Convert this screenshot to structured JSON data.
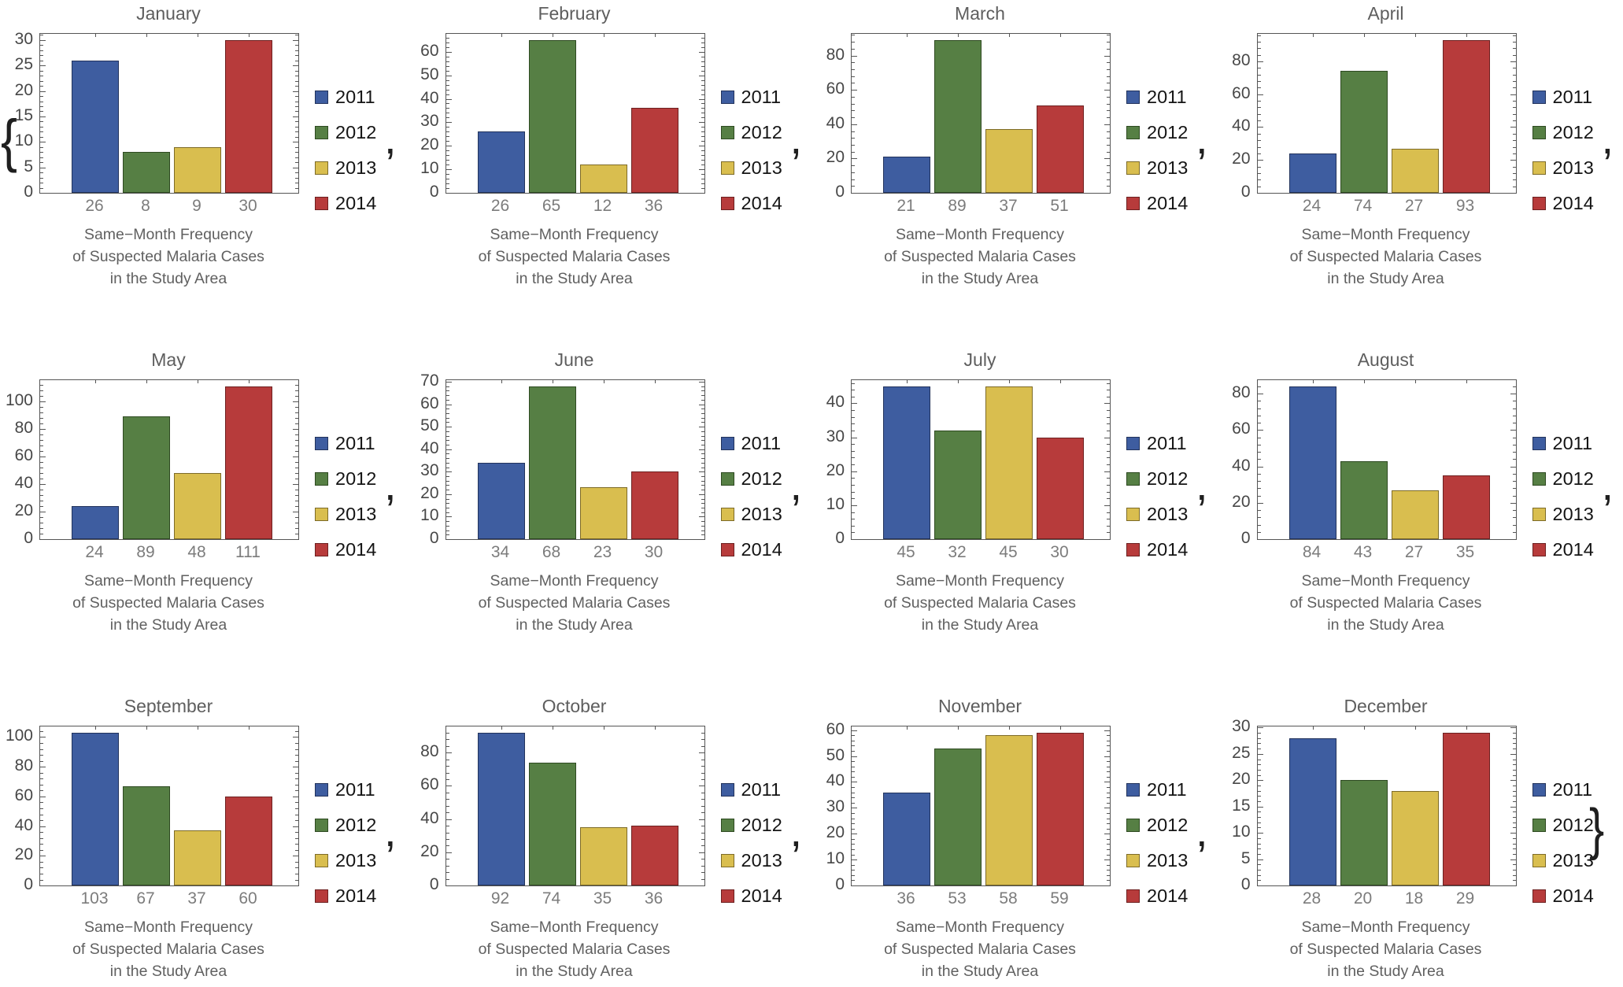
{
  "figure": {
    "list_delimiters": {
      "open": "{",
      "separator": ",",
      "close": "}"
    },
    "caption_lines": [
      "Same−Month Frequency",
      "of Suspected Malaria Cases",
      "in the Study Area"
    ],
    "legend": {
      "position": "right",
      "entries": [
        "2011",
        "2012",
        "2013",
        "2014"
      ]
    },
    "colors": {
      "series_fills": [
        "#3e5da0",
        "#567f44",
        "#d9be4f",
        "#b73b3b"
      ],
      "series_edges": [
        "#22335c",
        "#2e4a21",
        "#7d6b28",
        "#6d2020"
      ],
      "frame": "#555555",
      "title_text": "#5e5e5e",
      "tick_label_text": "#474747",
      "bar_value_text": "#7c7c7c",
      "caption_text": "#606060",
      "legend_text": "#141414",
      "delimiter_text": "#1f1f1f",
      "background": "#ffffff"
    }
  },
  "chart_data": [
    {
      "type": "bar",
      "title": "January",
      "categories": [
        "2011",
        "2012",
        "2013",
        "2014"
      ],
      "values": [
        26,
        8,
        9,
        30
      ],
      "yticks": [
        0,
        5,
        10,
        15,
        20,
        25,
        30
      ],
      "ylim": [
        0,
        31.2
      ],
      "xlabel": "Same−Month Frequency of Suspected Malaria Cases in the Study Area",
      "legend_position": "right",
      "separator_after": ","
    },
    {
      "type": "bar",
      "title": "February",
      "categories": [
        "2011",
        "2012",
        "2013",
        "2014"
      ],
      "values": [
        26,
        65,
        12,
        36
      ],
      "yticks": [
        0,
        10,
        20,
        30,
        40,
        50,
        60
      ],
      "ylim": [
        0,
        67.6
      ],
      "xlabel": "Same−Month Frequency of Suspected Malaria Cases in the Study Area",
      "legend_position": "right",
      "separator_after": ","
    },
    {
      "type": "bar",
      "title": "March",
      "categories": [
        "2011",
        "2012",
        "2013",
        "2014"
      ],
      "values": [
        21,
        89,
        37,
        51
      ],
      "yticks": [
        0,
        20,
        40,
        60,
        80
      ],
      "ylim": [
        0,
        92.6
      ],
      "xlabel": "Same−Month Frequency of Suspected Malaria Cases in the Study Area",
      "legend_position": "right",
      "separator_after": ","
    },
    {
      "type": "bar",
      "title": "April",
      "categories": [
        "2011",
        "2012",
        "2013",
        "2014"
      ],
      "values": [
        24,
        74,
        27,
        93
      ],
      "yticks": [
        0,
        20,
        40,
        60,
        80
      ],
      "ylim": [
        0,
        96.7
      ],
      "xlabel": "Same−Month Frequency of Suspected Malaria Cases in the Study Area",
      "legend_position": "right",
      "separator_after": ","
    },
    {
      "type": "bar",
      "title": "May",
      "categories": [
        "2011",
        "2012",
        "2013",
        "2014"
      ],
      "values": [
        24,
        89,
        48,
        111
      ],
      "yticks": [
        0,
        20,
        40,
        60,
        80,
        100
      ],
      "ylim": [
        0,
        115.4
      ],
      "xlabel": "Same−Month Frequency of Suspected Malaria Cases in the Study Area",
      "legend_position": "right",
      "separator_after": ","
    },
    {
      "type": "bar",
      "title": "June",
      "categories": [
        "2011",
        "2012",
        "2013",
        "2014"
      ],
      "values": [
        34,
        68,
        23,
        30
      ],
      "yticks": [
        0,
        10,
        20,
        30,
        40,
        50,
        60,
        70
      ],
      "ylim": [
        0,
        70.7
      ],
      "xlabel": "Same−Month Frequency of Suspected Malaria Cases in the Study Area",
      "legend_position": "right",
      "separator_after": ","
    },
    {
      "type": "bar",
      "title": "July",
      "categories": [
        "2011",
        "2012",
        "2013",
        "2014"
      ],
      "values": [
        45,
        32,
        45,
        30
      ],
      "yticks": [
        0,
        10,
        20,
        30,
        40
      ],
      "ylim": [
        0,
        46.8
      ],
      "xlabel": "Same−Month Frequency of Suspected Malaria Cases in the Study Area",
      "legend_position": "right",
      "separator_after": ","
    },
    {
      "type": "bar",
      "title": "August",
      "categories": [
        "2011",
        "2012",
        "2013",
        "2014"
      ],
      "values": [
        84,
        43,
        27,
        35
      ],
      "yticks": [
        0,
        20,
        40,
        60,
        80
      ],
      "ylim": [
        0,
        87.4
      ],
      "xlabel": "Same−Month Frequency of Suspected Malaria Cases in the Study Area",
      "legend_position": "right",
      "separator_after": ","
    },
    {
      "type": "bar",
      "title": "September",
      "categories": [
        "2011",
        "2012",
        "2013",
        "2014"
      ],
      "values": [
        103,
        67,
        37,
        60
      ],
      "yticks": [
        0,
        20,
        40,
        60,
        80,
        100
      ],
      "ylim": [
        0,
        107.1
      ],
      "xlabel": "Same−Month Frequency of Suspected Malaria Cases in the Study Area",
      "legend_position": "right",
      "separator_after": ","
    },
    {
      "type": "bar",
      "title": "October",
      "categories": [
        "2011",
        "2012",
        "2013",
        "2014"
      ],
      "values": [
        92,
        74,
        35,
        36
      ],
      "yticks": [
        0,
        20,
        40,
        60,
        80
      ],
      "ylim": [
        0,
        95.7
      ],
      "xlabel": "Same−Month Frequency of Suspected Malaria Cases in the Study Area",
      "legend_position": "right",
      "separator_after": ","
    },
    {
      "type": "bar",
      "title": "November",
      "categories": [
        "2011",
        "2012",
        "2013",
        "2014"
      ],
      "values": [
        36,
        53,
        58,
        59
      ],
      "yticks": [
        0,
        10,
        20,
        30,
        40,
        50,
        60
      ],
      "ylim": [
        0,
        61.4
      ],
      "xlabel": "Same−Month Frequency of Suspected Malaria Cases in the Study Area",
      "legend_position": "right",
      "separator_after": ","
    },
    {
      "type": "bar",
      "title": "December",
      "categories": [
        "2011",
        "2012",
        "2013",
        "2014"
      ],
      "values": [
        28,
        20,
        18,
        29
      ],
      "yticks": [
        0,
        5,
        10,
        15,
        20,
        25,
        30
      ],
      "ylim": [
        0,
        30.2
      ],
      "xlabel": "Same−Month Frequency of Suspected Malaria Cases in the Study Area",
      "legend_position": "right",
      "separator_after": "}"
    }
  ]
}
